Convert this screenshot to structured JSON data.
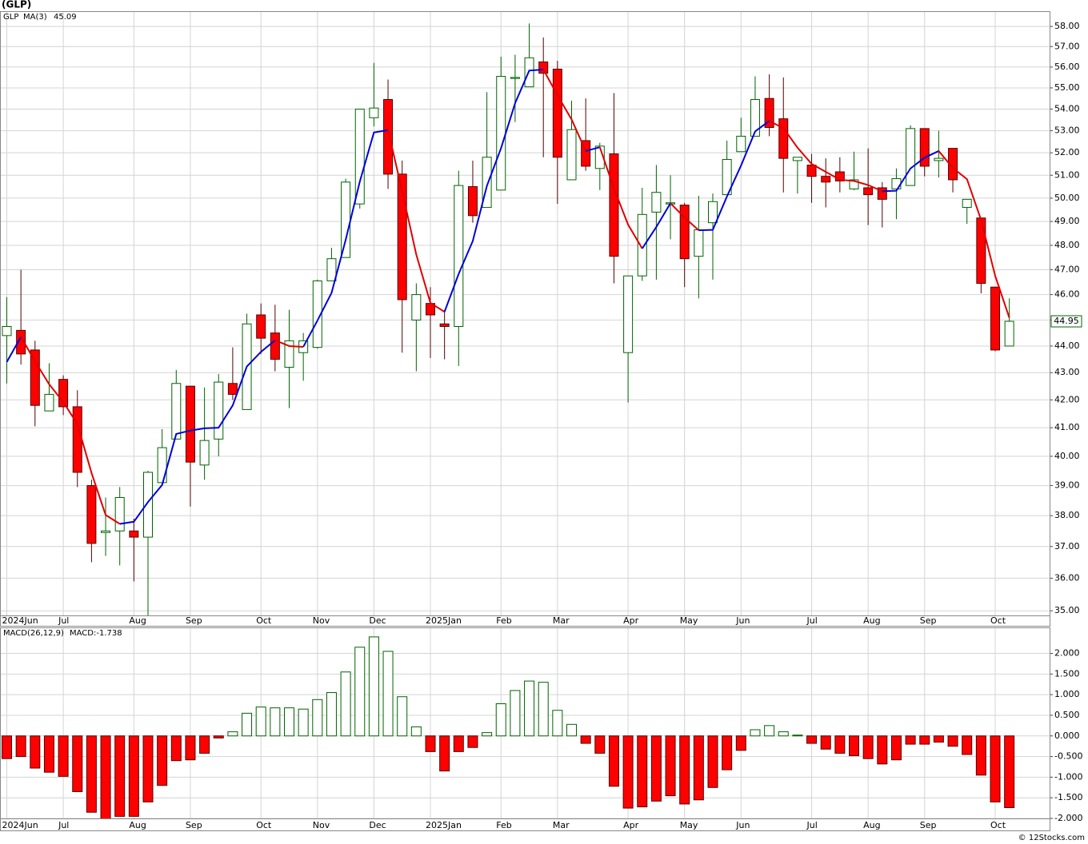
{
  "chart_data": [
    {
      "type": "candlestick",
      "title": "(GLP)",
      "categories": [
        "2024Jun",
        null,
        null,
        null,
        "Jul",
        null,
        null,
        null,
        null,
        "Aug",
        null,
        null,
        null,
        "Sep",
        null,
        null,
        null,
        null,
        "Oct",
        null,
        null,
        null,
        "Nov",
        null,
        null,
        null,
        "Dec",
        null,
        null,
        null,
        "2025Jan",
        null,
        null,
        null,
        null,
        "Feb",
        null,
        null,
        null,
        "Mar",
        null,
        null,
        null,
        null,
        "Apr",
        null,
        null,
        null,
        "May",
        null,
        null,
        null,
        "Jun",
        null,
        null,
        null,
        null,
        "Jul",
        null,
        null,
        null,
        "Aug",
        null,
        null,
        null,
        "Sep",
        null,
        null,
        null,
        null,
        "Oct",
        null
      ],
      "series": [
        {
          "name": "GLP",
          "color": "#006400",
          "down_color": "#ff0000",
          "open": [
            44.4,
            44.6,
            43.85,
            41.6,
            42.75,
            41.75,
            39.0,
            37.45,
            37.5,
            37.5,
            37.3,
            39.1,
            40.6,
            42.5,
            39.7,
            40.6,
            42.6,
            41.65,
            45.2,
            44.5,
            43.2,
            43.75,
            43.95,
            46.55,
            47.5,
            49.75,
            53.6,
            54.45,
            51.05,
            45.0,
            45.65,
            44.85,
            44.75,
            50.5,
            49.6,
            50.35,
            55.45,
            55.05,
            56.25,
            55.9,
            50.8,
            52.55,
            51.3,
            51.95,
            43.75,
            46.75,
            49.4,
            49.75,
            49.7,
            47.55,
            48.95,
            50.15,
            52.05,
            52.75,
            54.5,
            53.55,
            51.65,
            51.45,
            50.95,
            51.15,
            50.4,
            50.45,
            50.45,
            50.4,
            50.55,
            53.1,
            51.65,
            52.2,
            49.6,
            49.15,
            46.3,
            44.0
          ],
          "high": [
            45.9,
            47.0,
            44.2,
            43.35,
            42.9,
            42.35,
            39.2,
            38.6,
            38.95,
            37.9,
            39.5,
            40.95,
            43.1,
            42.5,
            42.45,
            42.95,
            43.95,
            45.25,
            45.65,
            45.6,
            45.4,
            44.5,
            46.6,
            47.9,
            50.85,
            54.0,
            56.2,
            55.4,
            51.65,
            46.45,
            46.3,
            45.4,
            51.2,
            51.65,
            54.8,
            56.5,
            56.6,
            58.15,
            57.45,
            56.3,
            54.4,
            54.5,
            52.45,
            54.75,
            46.75,
            50.45,
            51.45,
            51.0,
            49.8,
            50.1,
            50.2,
            52.55,
            53.6,
            55.55,
            55.65,
            55.5,
            51.8,
            51.95,
            51.75,
            51.8,
            52.05,
            52.2,
            50.7,
            51.3,
            53.25,
            53.1,
            53.0,
            52.2,
            49.95,
            49.15,
            46.3,
            45.85
          ],
          "low": [
            42.6,
            43.3,
            41.05,
            41.6,
            41.45,
            38.95,
            36.5,
            36.7,
            36.4,
            35.9,
            34.85,
            39.05,
            40.6,
            38.3,
            39.2,
            40.0,
            42.0,
            41.65,
            43.7,
            43.05,
            41.7,
            42.7,
            43.9,
            46.55,
            47.5,
            49.55,
            53.2,
            50.4,
            43.75,
            43.05,
            43.55,
            43.5,
            43.25,
            48.95,
            49.6,
            50.35,
            53.4,
            55.05,
            51.8,
            49.75,
            50.8,
            51.2,
            50.35,
            46.45,
            41.9,
            46.55,
            46.6,
            48.25,
            46.3,
            45.85,
            46.6,
            50.15,
            52.05,
            52.75,
            52.75,
            50.25,
            50.2,
            49.8,
            49.6,
            50.25,
            50.35,
            48.85,
            48.75,
            49.1,
            50.55,
            50.95,
            50.9,
            50.25,
            48.9,
            46.05,
            43.8,
            44.0
          ],
          "close": [
            44.75,
            43.7,
            41.8,
            42.2,
            41.75,
            39.45,
            37.1,
            37.5,
            38.6,
            37.3,
            39.45,
            40.3,
            42.6,
            39.8,
            40.55,
            42.65,
            42.2,
            44.85,
            44.3,
            43.5,
            44.2,
            44.2,
            46.55,
            47.45,
            50.7,
            54.0,
            54.05,
            51.05,
            45.8,
            46.0,
            45.2,
            44.75,
            50.55,
            49.25,
            51.8,
            55.55,
            55.5,
            56.45,
            55.7,
            51.8,
            53.05,
            51.4,
            52.3,
            47.55,
            46.75,
            49.3,
            50.25,
            49.8,
            47.45,
            48.65,
            49.85,
            51.7,
            52.75,
            54.45,
            53.15,
            51.75,
            51.8,
            50.95,
            50.7,
            50.75,
            50.8,
            50.15,
            49.95,
            50.85,
            53.1,
            51.4,
            51.75,
            50.8,
            49.95,
            46.45,
            43.85,
            44.95
          ]
        },
        {
          "name": "MA(3)",
          "type": "line",
          "color": "#0000dd",
          "down_color": "#e00000",
          "values": [
            43.4,
            44.35,
            43.42,
            42.57,
            41.92,
            41.13,
            39.43,
            38.02,
            37.73,
            37.8,
            38.45,
            39.02,
            40.78,
            40.9,
            40.98,
            41.0,
            41.8,
            43.23,
            43.78,
            44.22,
            44.0,
            43.97,
            44.98,
            46.07,
            48.23,
            50.72,
            52.92,
            53.03,
            50.3,
            47.62,
            45.67,
            45.32,
            46.83,
            48.18,
            50.53,
            52.2,
            54.28,
            55.83,
            55.88,
            54.65,
            53.52,
            52.08,
            52.25,
            50.42,
            48.87,
            47.87,
            48.77,
            49.78,
            49.17,
            48.63,
            48.65,
            50.07,
            51.43,
            52.97,
            53.45,
            53.12,
            52.23,
            51.5,
            51.15,
            50.8,
            50.75,
            50.57,
            50.3,
            50.32,
            51.3,
            51.78,
            52.08,
            51.32,
            50.83,
            49.07,
            46.75,
            45.09
          ]
        }
      ],
      "log_scale": true,
      "grid": true,
      "ylim": [
        34.86,
        58.77
      ],
      "yticks": [
        {
          "value": 35,
          "label": "35.00"
        },
        {
          "value": 36,
          "label": "36.00"
        },
        {
          "value": 37,
          "label": "37.00"
        },
        {
          "value": 38,
          "label": "38.00"
        },
        {
          "value": 39,
          "label": "39.00"
        },
        {
          "value": 40,
          "label": "40.00"
        },
        {
          "value": 41,
          "label": "41.00"
        },
        {
          "value": 42,
          "label": "42.00"
        },
        {
          "value": 43,
          "label": "43.00"
        },
        {
          "value": 44,
          "label": "44.00"
        },
        {
          "value": 45,
          "label": "45.00"
        },
        {
          "value": 46,
          "label": "46.00"
        },
        {
          "value": 47,
          "label": "47.00"
        },
        {
          "value": 48,
          "label": "48.00"
        },
        {
          "value": 49,
          "label": "49.00"
        },
        {
          "value": 50,
          "label": "50.00"
        },
        {
          "value": 51,
          "label": "51.00"
        },
        {
          "value": 52,
          "label": "52.00"
        },
        {
          "value": 53,
          "label": "53.00"
        },
        {
          "value": 54,
          "label": "54.00"
        },
        {
          "value": 55,
          "label": "55.00"
        },
        {
          "value": 56,
          "label": "56.00"
        },
        {
          "value": 57,
          "label": "57.00"
        },
        {
          "value": 58,
          "label": "58.00"
        }
      ]
    },
    {
      "type": "bar",
      "title": "MACD(26,12,9)",
      "categories": [
        "2024Jun",
        null,
        null,
        null,
        "Jul",
        null,
        null,
        null,
        null,
        "Aug",
        null,
        null,
        null,
        "Sep",
        null,
        null,
        null,
        null,
        "Oct",
        null,
        null,
        null,
        "Nov",
        null,
        null,
        null,
        "Dec",
        null,
        null,
        null,
        "2025Jan",
        null,
        null,
        null,
        null,
        "Feb",
        null,
        null,
        null,
        "Mar",
        null,
        null,
        null,
        null,
        "Apr",
        null,
        null,
        null,
        "May",
        null,
        null,
        null,
        "Jun",
        null,
        null,
        null,
        null,
        "Jul",
        null,
        null,
        null,
        "Aug",
        null,
        null,
        null,
        "Sep",
        null,
        null,
        null,
        null,
        "Oct",
        null
      ],
      "series": [
        {
          "name": "MACD:",
          "color": "#006400",
          "down_color": "#ff0000",
          "values": [
            -0.55,
            -0.5,
            -0.78,
            -0.88,
            -0.98,
            -1.35,
            -1.85,
            -2.05,
            -1.95,
            -1.95,
            -1.6,
            -1.2,
            -0.6,
            -0.58,
            -0.42,
            -0.05,
            0.1,
            0.55,
            0.7,
            0.68,
            0.68,
            0.65,
            0.88,
            1.05,
            1.55,
            2.15,
            2.4,
            2.05,
            0.95,
            0.22,
            -0.38,
            -0.85,
            -0.38,
            -0.28,
            0.08,
            0.78,
            1.1,
            1.33,
            1.3,
            0.62,
            0.28,
            -0.18,
            -0.42,
            -1.22,
            -1.75,
            -1.72,
            -1.58,
            -1.45,
            -1.65,
            -1.55,
            -1.25,
            -0.82,
            -0.35,
            0.15,
            0.25,
            0.1,
            0.02,
            -0.18,
            -0.32,
            -0.42,
            -0.48,
            -0.55,
            -0.68,
            -0.58,
            -0.2,
            -0.2,
            -0.15,
            -0.25,
            -0.45,
            -0.95,
            -1.6,
            -1.738
          ]
        }
      ],
      "grid": true,
      "ylim": [
        -2.0,
        2.63
      ],
      "yticks": [
        {
          "value": -2,
          "label": "-2.000"
        },
        {
          "value": -1.5,
          "label": "-1.500"
        },
        {
          "value": -1,
          "label": "-1.000"
        },
        {
          "value": -0.5,
          "label": "-0.500"
        },
        {
          "value": 0,
          "label": "0.000"
        },
        {
          "value": 0.5,
          "label": "0.500"
        },
        {
          "value": 1,
          "label": "1.000"
        },
        {
          "value": 1.5,
          "label": "1.500"
        },
        {
          "value": 2,
          "label": "2.000"
        }
      ]
    }
  ],
  "source": "© 12Stocks.com"
}
